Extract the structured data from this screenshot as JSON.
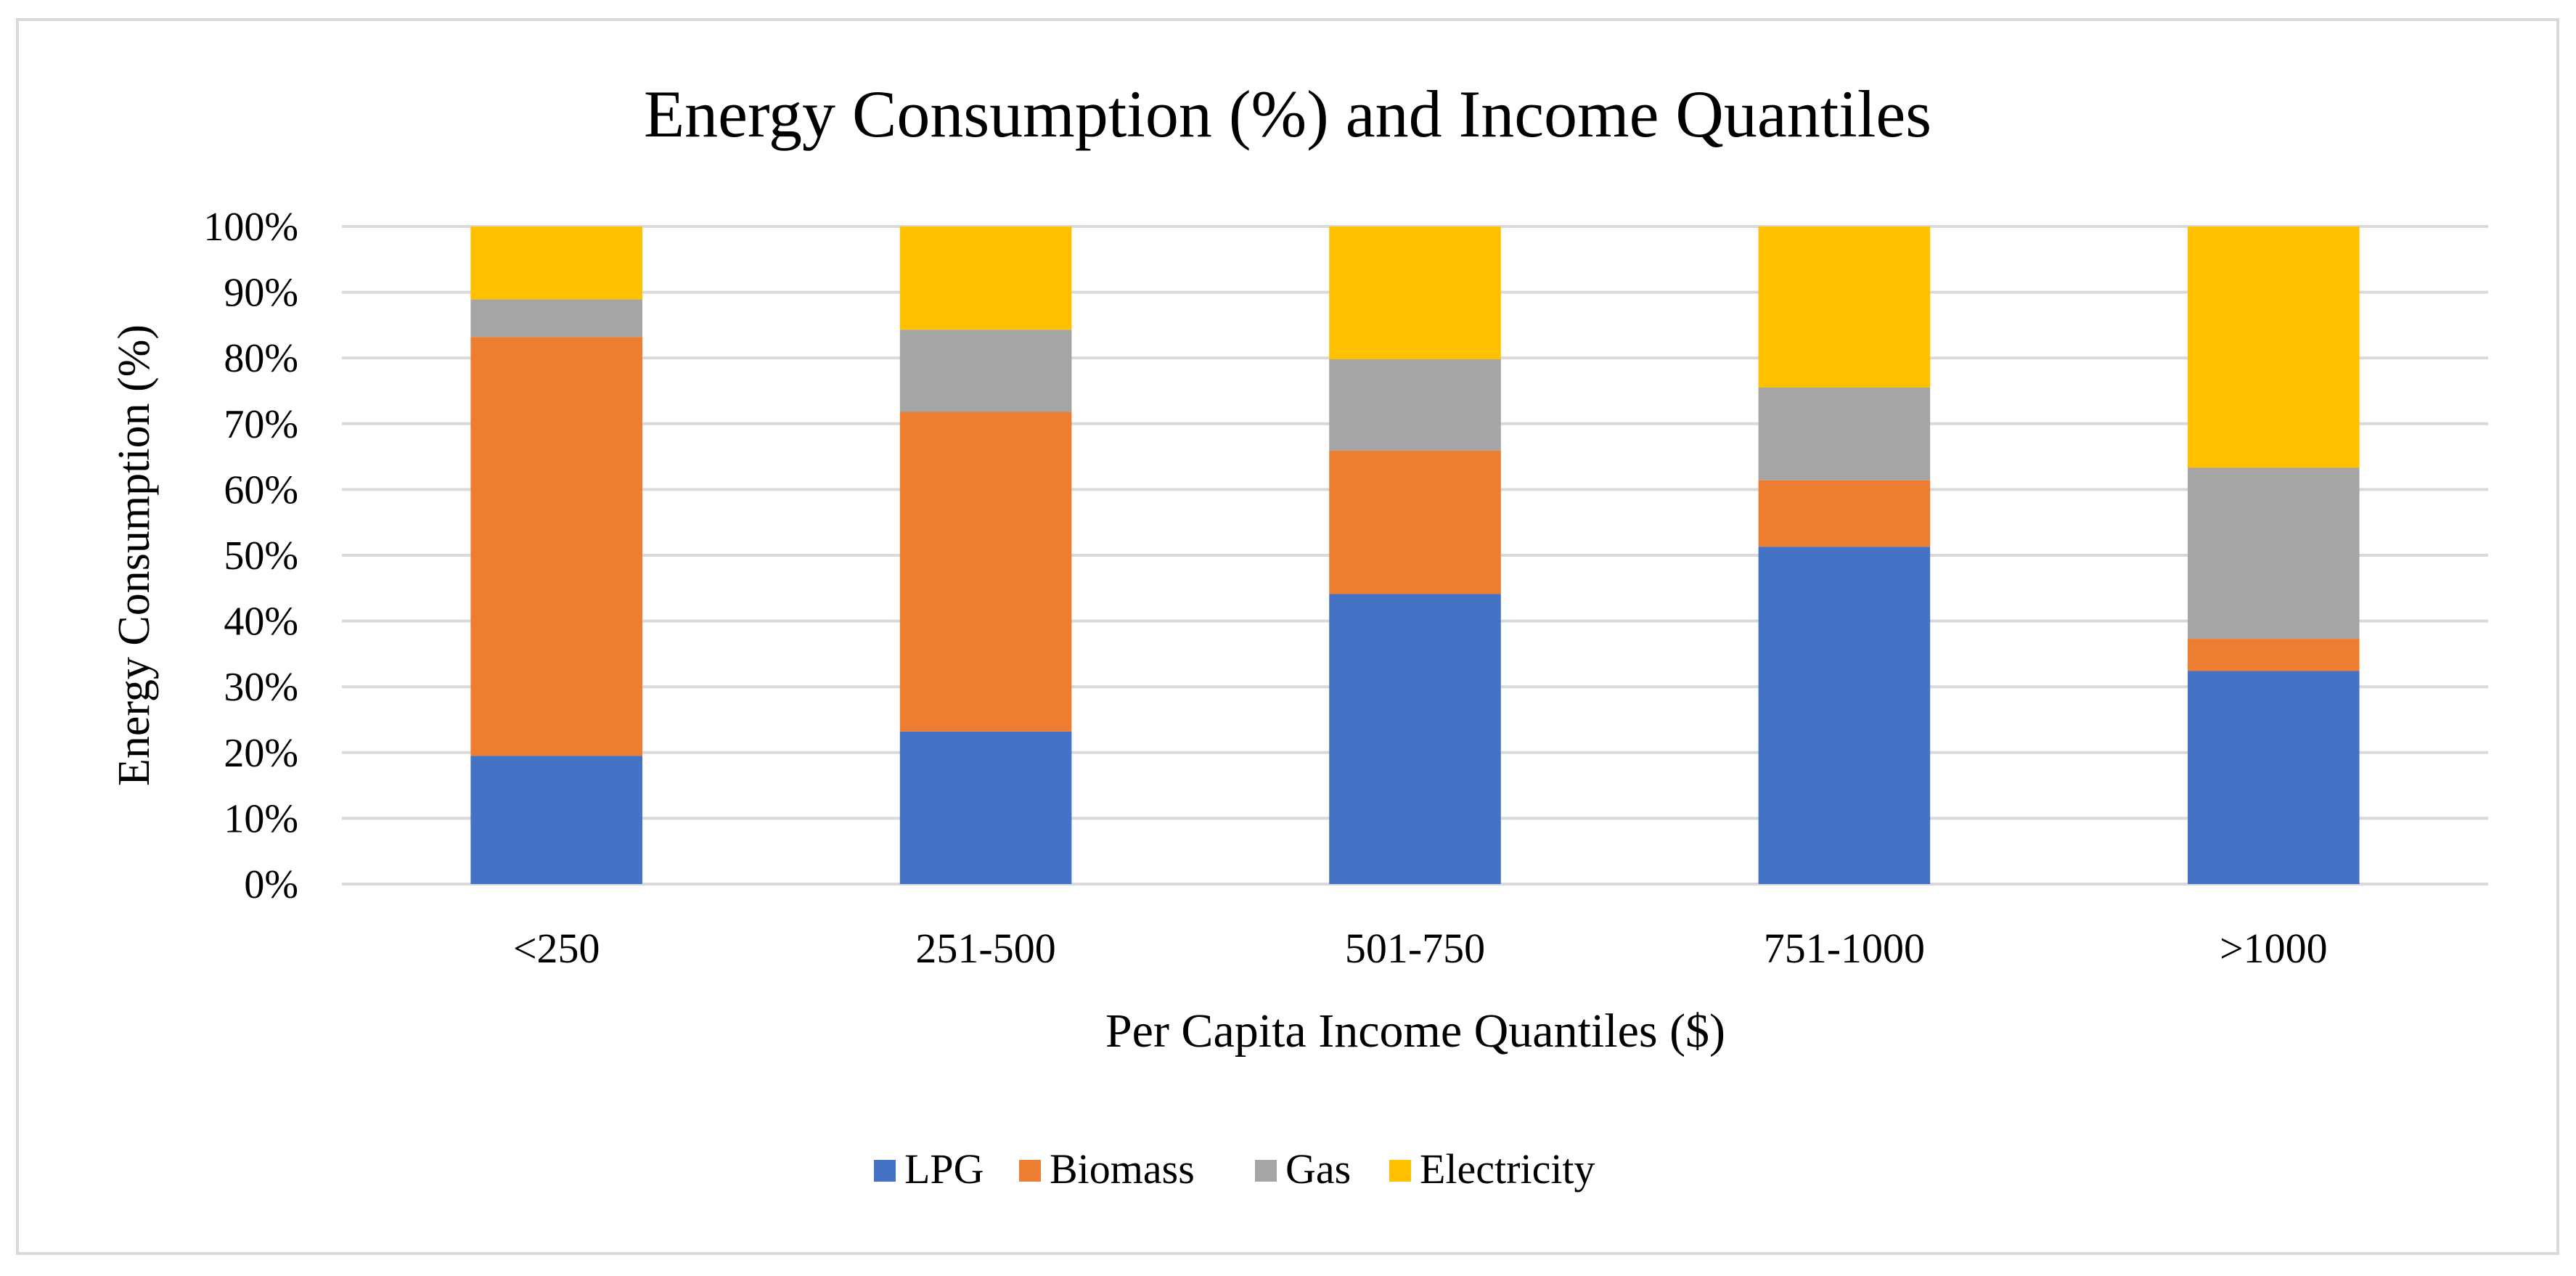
{
  "chart_data": {
    "type": "bar",
    "stacked": true,
    "title": "Energy Consumption (%) and Income Quantiles",
    "xlabel": "Per Capita Income Quantiles ($)",
    "ylabel": "Energy Consumption (%)",
    "ylim": [
      0,
      100
    ],
    "yticks": [
      "0%",
      "10%",
      "20%",
      "30%",
      "40%",
      "50%",
      "60%",
      "70%",
      "80%",
      "90%",
      "100%"
    ],
    "grid": true,
    "legend_position": "bottom",
    "categories": [
      "<250",
      "251-500",
      "501-750",
      "751-1000",
      ">1000"
    ],
    "series": [
      {
        "name": "LPG",
        "color": "#4472C4",
        "values": [
          19.5,
          23.2,
          44.1,
          51.3,
          32.4
        ]
      },
      {
        "name": "Biomass",
        "color": "#ED7D31",
        "values": [
          63.7,
          48.6,
          21.8,
          10.1,
          4.9
        ]
      },
      {
        "name": "Gas",
        "color": "#A5A5A5",
        "values": [
          5.7,
          12.5,
          13.9,
          14.1,
          26.0
        ]
      },
      {
        "name": "Electricity",
        "color": "#FFC000",
        "values": [
          11.1,
          15.7,
          20.2,
          24.5,
          36.7
        ]
      }
    ]
  }
}
